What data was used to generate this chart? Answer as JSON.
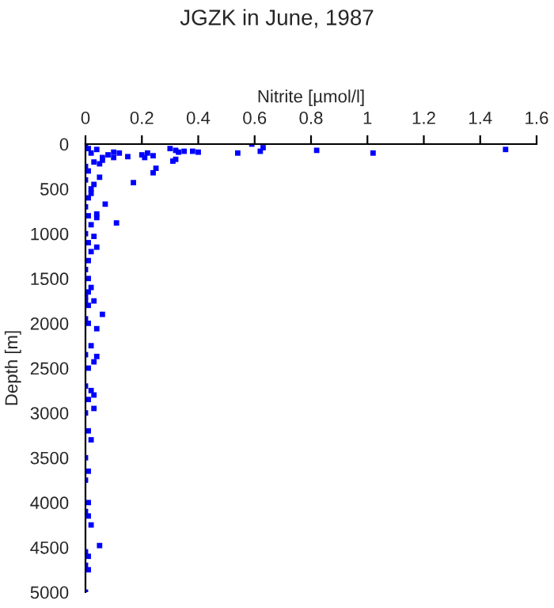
{
  "chart_data": {
    "type": "scatter",
    "title": "JGZK in June, 1987",
    "xlabel": "Nitrite [µmol/l]",
    "ylabel": "Depth [m]",
    "xlim": [
      0,
      1.6
    ],
    "xticks": [
      0,
      0.2,
      0.4,
      0.6,
      0.8,
      1,
      1.2,
      1.4,
      1.6
    ],
    "ylim": [
      5000,
      0
    ],
    "yticks": [
      0,
      500,
      1000,
      1500,
      2000,
      2500,
      3000,
      3500,
      4000,
      4500,
      5000
    ],
    "grid": false,
    "marker": "square",
    "legend": false,
    "series": [
      {
        "color": "#0000ff",
        "x": [
          0.59,
          0.63,
          0.62,
          0.54,
          0.82,
          1.02,
          1.49,
          0.4,
          0.38,
          0.35,
          0.33,
          0.3,
          0.32,
          0.22,
          0.2,
          0.24,
          0.21,
          0.17,
          0.24,
          0.25,
          0.31,
          0.32,
          0.15,
          0.12,
          0.1,
          0.1,
          0.08,
          0.06,
          0.11,
          0.07,
          0.05,
          0.04,
          0.04,
          0.03,
          0.06,
          0.04,
          0.04,
          0.03,
          0.03,
          0.03,
          0.05,
          0.02,
          0.0,
          0.01,
          0.02,
          0.03,
          0.01,
          0.0,
          0.02,
          0.01,
          0.0,
          0.01,
          0.02,
          0.0,
          0.01,
          0.02,
          0.01,
          0.0,
          0.01,
          0.02,
          0.0,
          0.01,
          0.0,
          0.01,
          0.02,
          0.0,
          0.01,
          0.0,
          0.02,
          0.01,
          0.0,
          0.01,
          0.02,
          0.0,
          0.01,
          0.0,
          0.01,
          0.0,
          0.01,
          0.0,
          0.01,
          0.0,
          0.01,
          0.0,
          0.01,
          0.0,
          0.0,
          0.04,
          0.06,
          0.05,
          0.03,
          0.02,
          0.04,
          0.03
        ],
        "values": [
          0,
          40,
          80,
          100,
          70,
          100,
          60,
          90,
          80,
          80,
          90,
          50,
          70,
          100,
          120,
          130,
          150,
          430,
          320,
          270,
          190,
          170,
          140,
          100,
          90,
          150,
          120,
          180,
          880,
          670,
          370,
          780,
          820,
          1030,
          1900,
          2060,
          2370,
          2430,
          2800,
          2950,
          4480,
          4250,
          0,
          50,
          100,
          200,
          300,
          400,
          500,
          600,
          700,
          800,
          900,
          1000,
          1100,
          1200,
          1300,
          1400,
          1500,
          1600,
          1700,
          1800,
          1950,
          2000,
          2250,
          2350,
          2500,
          2700,
          2750,
          2850,
          3000,
          3200,
          3300,
          3500,
          3650,
          3750,
          4000,
          4100,
          4150,
          4550,
          4600,
          4700,
          4750,
          5000,
          1650,
          1750,
          250,
          60,
          150,
          220,
          450,
          550,
          1150,
          1750
        ]
      }
    ]
  }
}
